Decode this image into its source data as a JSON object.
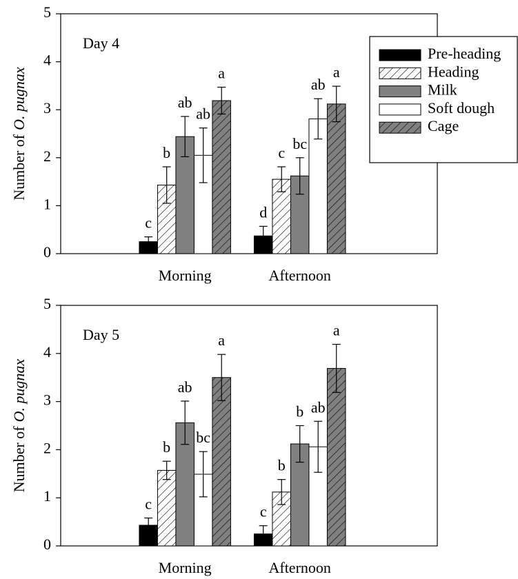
{
  "chart_data": [
    {
      "type": "bar",
      "annotation": "Day 4",
      "ylabel": [
        "Number of",
        "O. pugnax"
      ],
      "categories": [
        "Morning",
        "Afternoon"
      ],
      "ylim": [
        0,
        5
      ],
      "yticks": [
        0,
        1,
        2,
        3,
        4,
        5
      ],
      "legend": "upper right",
      "series": [
        {
          "name": "Pre-heading",
          "color": "#000000",
          "hatch": false,
          "values": [
            0.25,
            0.37
          ],
          "errors": [
            0.1,
            0.2
          ],
          "letters": [
            "c",
            "d"
          ]
        },
        {
          "name": "Heading",
          "color": "#ffffff",
          "hatch": true,
          "values": [
            1.43,
            1.55
          ],
          "errors": [
            0.38,
            0.26
          ],
          "letters": [
            "b",
            "c"
          ]
        },
        {
          "name": "Milk",
          "color": "#808080",
          "hatch": false,
          "values": [
            2.44,
            1.62
          ],
          "errors": [
            0.42,
            0.38
          ],
          "letters": [
            "ab",
            "bc"
          ]
        },
        {
          "name": "Soft dough",
          "color": "#ffffff",
          "hatch": false,
          "values": [
            2.05,
            2.81
          ],
          "errors": [
            0.57,
            0.42
          ],
          "letters": [
            "ab",
            "ab"
          ]
        },
        {
          "name": "Cage",
          "color": "#808080",
          "hatch": true,
          "values": [
            3.19,
            3.12
          ],
          "errors": [
            0.28,
            0.37
          ],
          "letters": [
            "a",
            "a"
          ]
        }
      ]
    },
    {
      "type": "bar",
      "annotation": "Day 5",
      "ylabel": [
        "Number of",
        "O. pugnax"
      ],
      "categories": [
        "Morning",
        "Afternoon"
      ],
      "ylim": [
        0,
        5
      ],
      "yticks": [
        0,
        1,
        2,
        3,
        4,
        5
      ],
      "series": [
        {
          "color": "#000000",
          "hatch": false,
          "values": [
            0.43,
            0.25
          ],
          "errors": [
            0.15,
            0.17
          ],
          "letters": [
            "c",
            "c"
          ]
        },
        {
          "color": "#ffffff",
          "hatch": true,
          "values": [
            1.57,
            1.12
          ],
          "errors": [
            0.19,
            0.26
          ],
          "letters": [
            "b",
            "b"
          ]
        },
        {
          "color": "#808080",
          "hatch": false,
          "values": [
            2.56,
            2.12
          ],
          "errors": [
            0.45,
            0.38
          ],
          "letters": [
            "ab",
            "b"
          ]
        },
        {
          "color": "#ffffff",
          "hatch": false,
          "values": [
            1.49,
            2.06
          ],
          "errors": [
            0.47,
            0.53
          ],
          "letters": [
            "bc",
            "ab"
          ]
        },
        {
          "color": "#808080",
          "hatch": true,
          "values": [
            3.5,
            3.69
          ],
          "errors": [
            0.48,
            0.5
          ],
          "letters": [
            "a",
            "a"
          ]
        }
      ]
    }
  ]
}
